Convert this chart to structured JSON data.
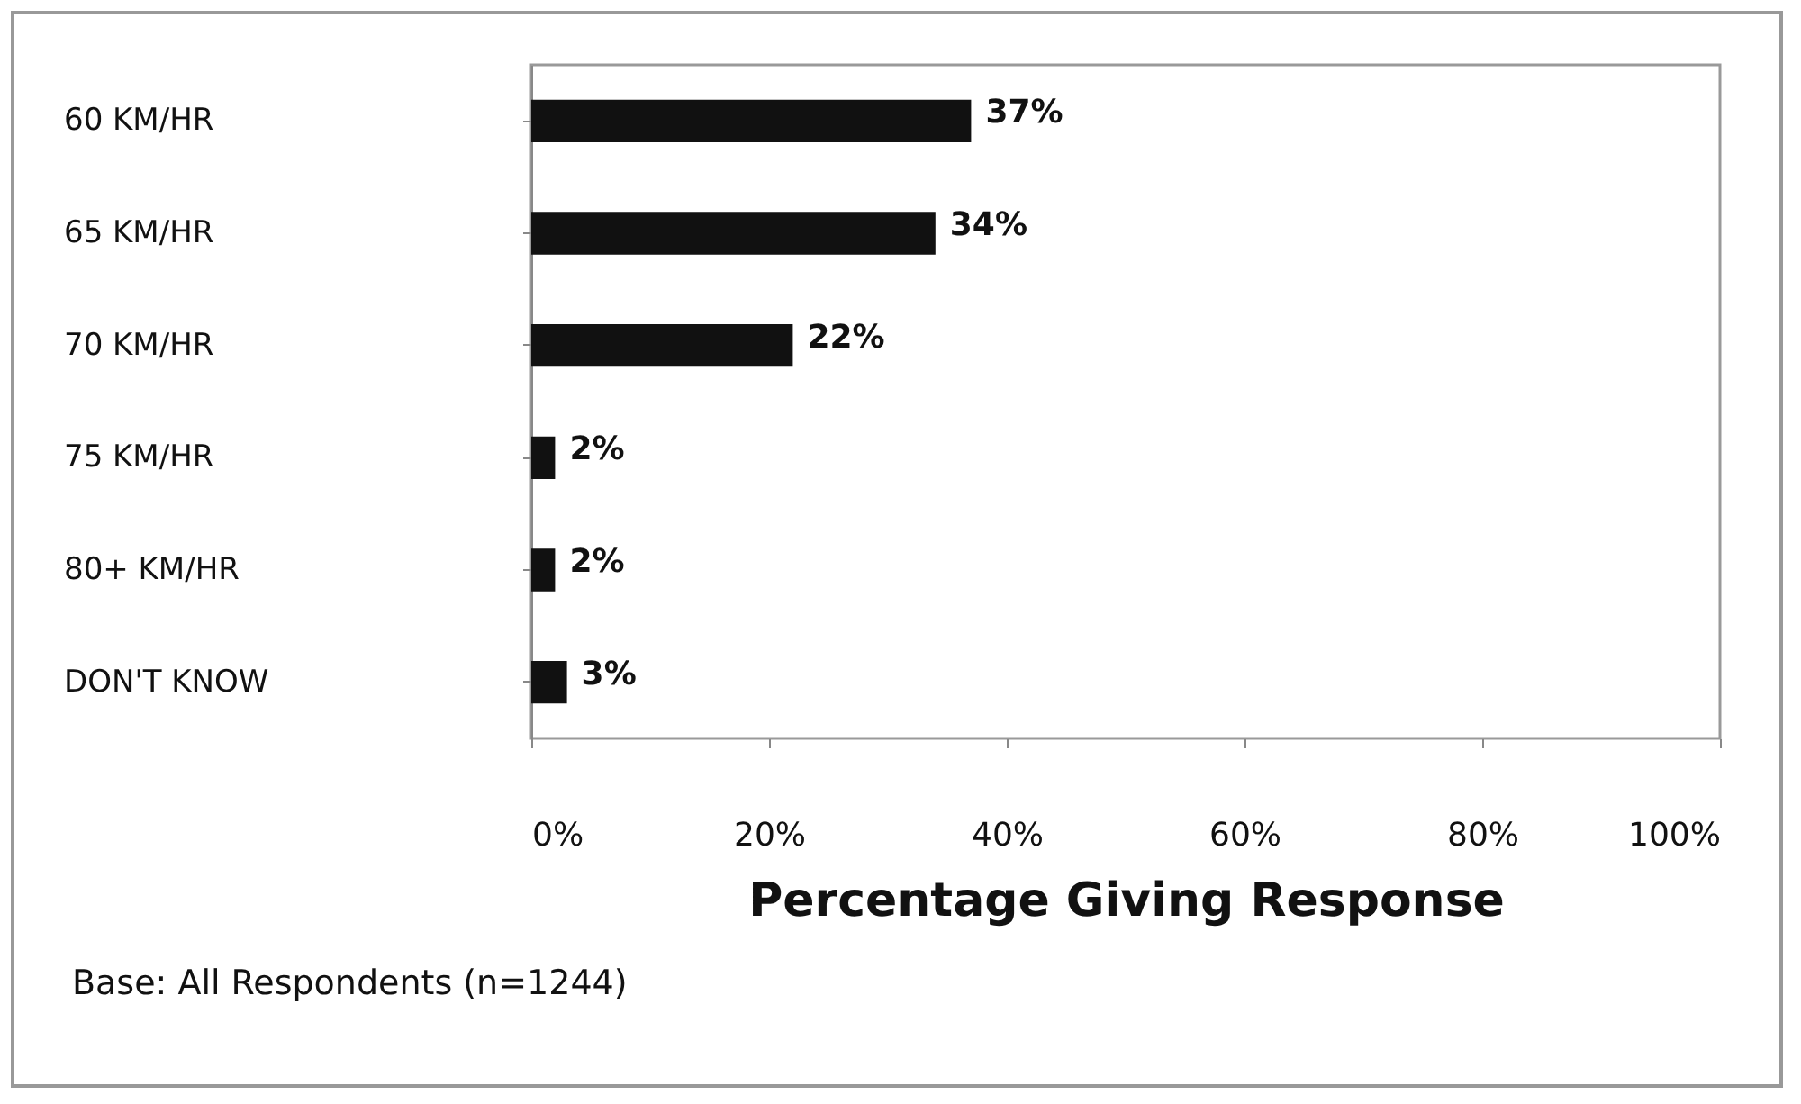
{
  "chart_data": {
    "type": "bar",
    "orientation": "horizontal",
    "categories": [
      "60 KM/HR",
      "65 KM/HR",
      "70 KM/HR",
      "75 KM/HR",
      "80+ KM/HR",
      "DON'T KNOW"
    ],
    "values": [
      37,
      34,
      22,
      2,
      2,
      3
    ],
    "value_labels": [
      "37%",
      "34%",
      "22%",
      "2%",
      "2%",
      "3%"
    ],
    "color": "#111111",
    "xlim": [
      0,
      100
    ],
    "xticks": [
      {
        "value": 0,
        "label": "0%"
      },
      {
        "value": 20,
        "label": "20%"
      },
      {
        "value": 40,
        "label": "40%"
      },
      {
        "value": 60,
        "label": "60%"
      },
      {
        "value": 80,
        "label": "80%"
      },
      {
        "value": 100,
        "label": "100%"
      }
    ],
    "xlabel": "Percentage Giving Response",
    "annotations": [
      "Base:  All Respondents (n=1244)"
    ]
  }
}
